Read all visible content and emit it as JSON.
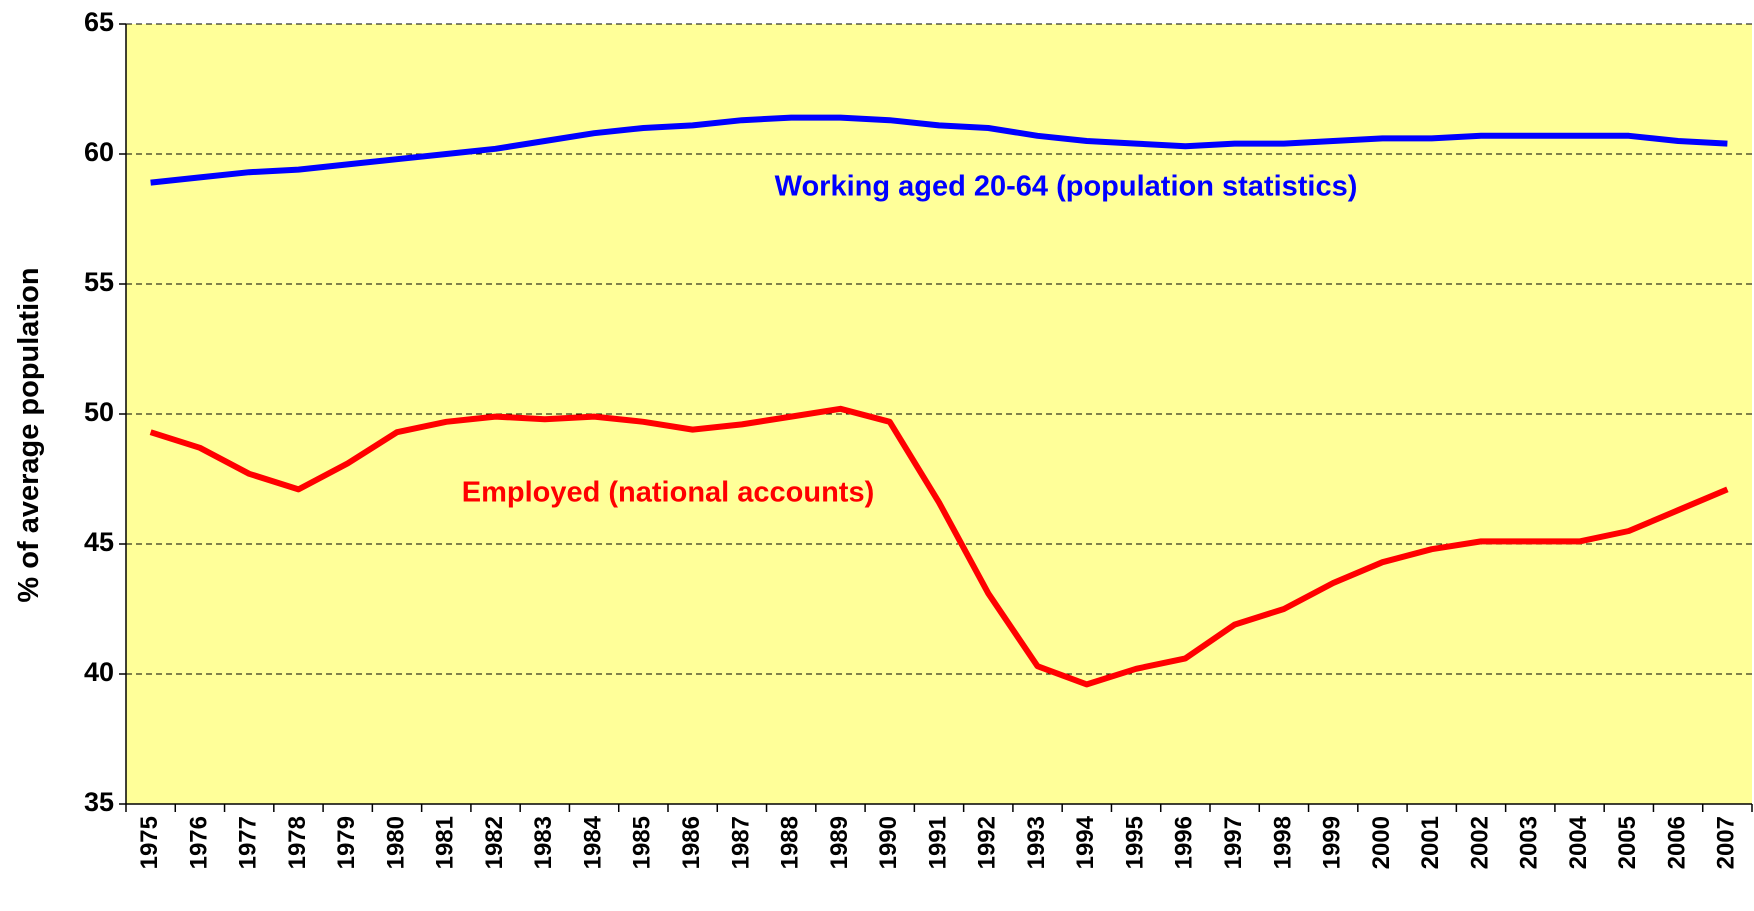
{
  "chart_data": {
    "type": "line",
    "y_label": "% of average population",
    "categories": [
      "1975",
      "1976",
      "1977",
      "1978",
      "1979",
      "1980",
      "1981",
      "1982",
      "1983",
      "1984",
      "1985",
      "1986",
      "1987",
      "1988",
      "1989",
      "1990",
      "1991",
      "1992",
      "1993",
      "1994",
      "1995",
      "1996",
      "1997",
      "1998",
      "1999",
      "2000",
      "2001",
      "2002",
      "2003",
      "2004",
      "2005",
      "2006",
      "2007"
    ],
    "series": [
      {
        "name": "Working aged 20-64 (population statistics)",
        "color": "#0000ff",
        "values": [
          58.9,
          59.1,
          59.3,
          59.4,
          59.6,
          59.8,
          60.0,
          60.2,
          60.5,
          60.8,
          61.0,
          61.1,
          61.3,
          61.4,
          61.4,
          61.3,
          61.1,
          61.0,
          60.7,
          60.5,
          60.4,
          60.3,
          60.4,
          60.4,
          60.5,
          60.6,
          60.6,
          60.7,
          60.7,
          60.7,
          60.7,
          60.5,
          60.4
        ]
      },
      {
        "name": "Employed (national accounts)",
        "color": "#ff0000",
        "values": [
          49.3,
          48.7,
          47.7,
          47.1,
          48.1,
          49.3,
          49.7,
          49.9,
          49.8,
          49.9,
          49.7,
          49.4,
          49.6,
          49.9,
          50.2,
          49.7,
          46.6,
          43.1,
          40.3,
          39.6,
          40.2,
          40.6,
          41.9,
          42.5,
          43.5,
          44.3,
          44.8,
          45.1,
          45.1,
          45.1,
          45.5,
          46.3,
          47.1
        ]
      }
    ],
    "ylim": [
      35,
      65
    ],
    "yticks": [
      35,
      40,
      45,
      50,
      55,
      60,
      65
    ],
    "grid": true,
    "background": "#ffff99"
  }
}
